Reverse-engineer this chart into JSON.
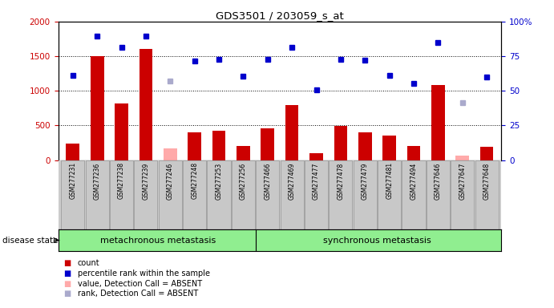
{
  "title": "GDS3501 / 203059_s_at",
  "samples": [
    "GSM277231",
    "GSM277236",
    "GSM277238",
    "GSM277239",
    "GSM277246",
    "GSM277248",
    "GSM277253",
    "GSM277256",
    "GSM277466",
    "GSM277469",
    "GSM277477",
    "GSM277478",
    "GSM277479",
    "GSM277481",
    "GSM277494",
    "GSM277646",
    "GSM277647",
    "GSM277648"
  ],
  "count_values": [
    240,
    1500,
    820,
    1600,
    null,
    400,
    430,
    200,
    460,
    800,
    100,
    490,
    400,
    350,
    210,
    1080,
    null,
    190
  ],
  "count_absent": [
    null,
    null,
    null,
    null,
    170,
    null,
    null,
    null,
    null,
    null,
    null,
    null,
    null,
    null,
    null,
    null,
    60,
    null
  ],
  "rank_values": [
    1220,
    1790,
    1630,
    1790,
    null,
    1430,
    1450,
    1210,
    1460,
    1630,
    1010,
    1450,
    1440,
    1220,
    1110,
    1700,
    null,
    1200
  ],
  "rank_absent": [
    null,
    null,
    null,
    null,
    1140,
    null,
    null,
    null,
    null,
    null,
    null,
    null,
    null,
    null,
    null,
    null,
    830,
    null
  ],
  "group1_label": "metachronous metastasis",
  "group2_label": "synchronous metastasis",
  "disease_state_label": "disease state",
  "bar_color_present": "#cc0000",
  "bar_color_absent": "#ffaaaa",
  "dot_color_present": "#0000cc",
  "dot_color_absent": "#aaaacc",
  "ylim_left": [
    0,
    2000
  ],
  "ylim_right": [
    0,
    100
  ],
  "yticks_left": [
    0,
    500,
    1000,
    1500,
    2000
  ],
  "yticks_right": [
    0,
    25,
    50,
    75,
    100
  ],
  "background_color": "#ffffff",
  "tick_area_bg": "#cccccc",
  "group_bg": "#90ee90",
  "grid_yticks": [
    500,
    1000,
    1500
  ],
  "g1_count": 8,
  "g2_count": 10
}
